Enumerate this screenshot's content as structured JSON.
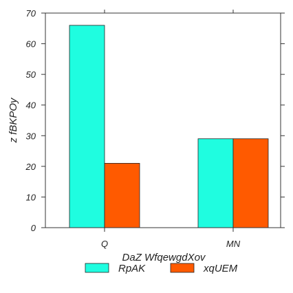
{
  "chart_data": {
    "type": "bar",
    "title": "",
    "xlabel": "DaZ WfqewgdXov",
    "ylabel": "z fBKPOy",
    "categories": [
      "Q",
      "MN"
    ],
    "series": [
      {
        "name": "RpAK",
        "values": [
          66,
          29
        ],
        "color": "#1ffde0"
      },
      {
        "name": "xqUEM",
        "values": [
          21,
          29
        ],
        "color": "#ff5a00"
      }
    ],
    "ylim": [
      0,
      70
    ],
    "yticks": [
      0,
      10,
      20,
      30,
      40,
      50,
      60,
      70
    ],
    "grid": false,
    "legend": {
      "placement": "bottom-center",
      "columns": 2
    }
  }
}
